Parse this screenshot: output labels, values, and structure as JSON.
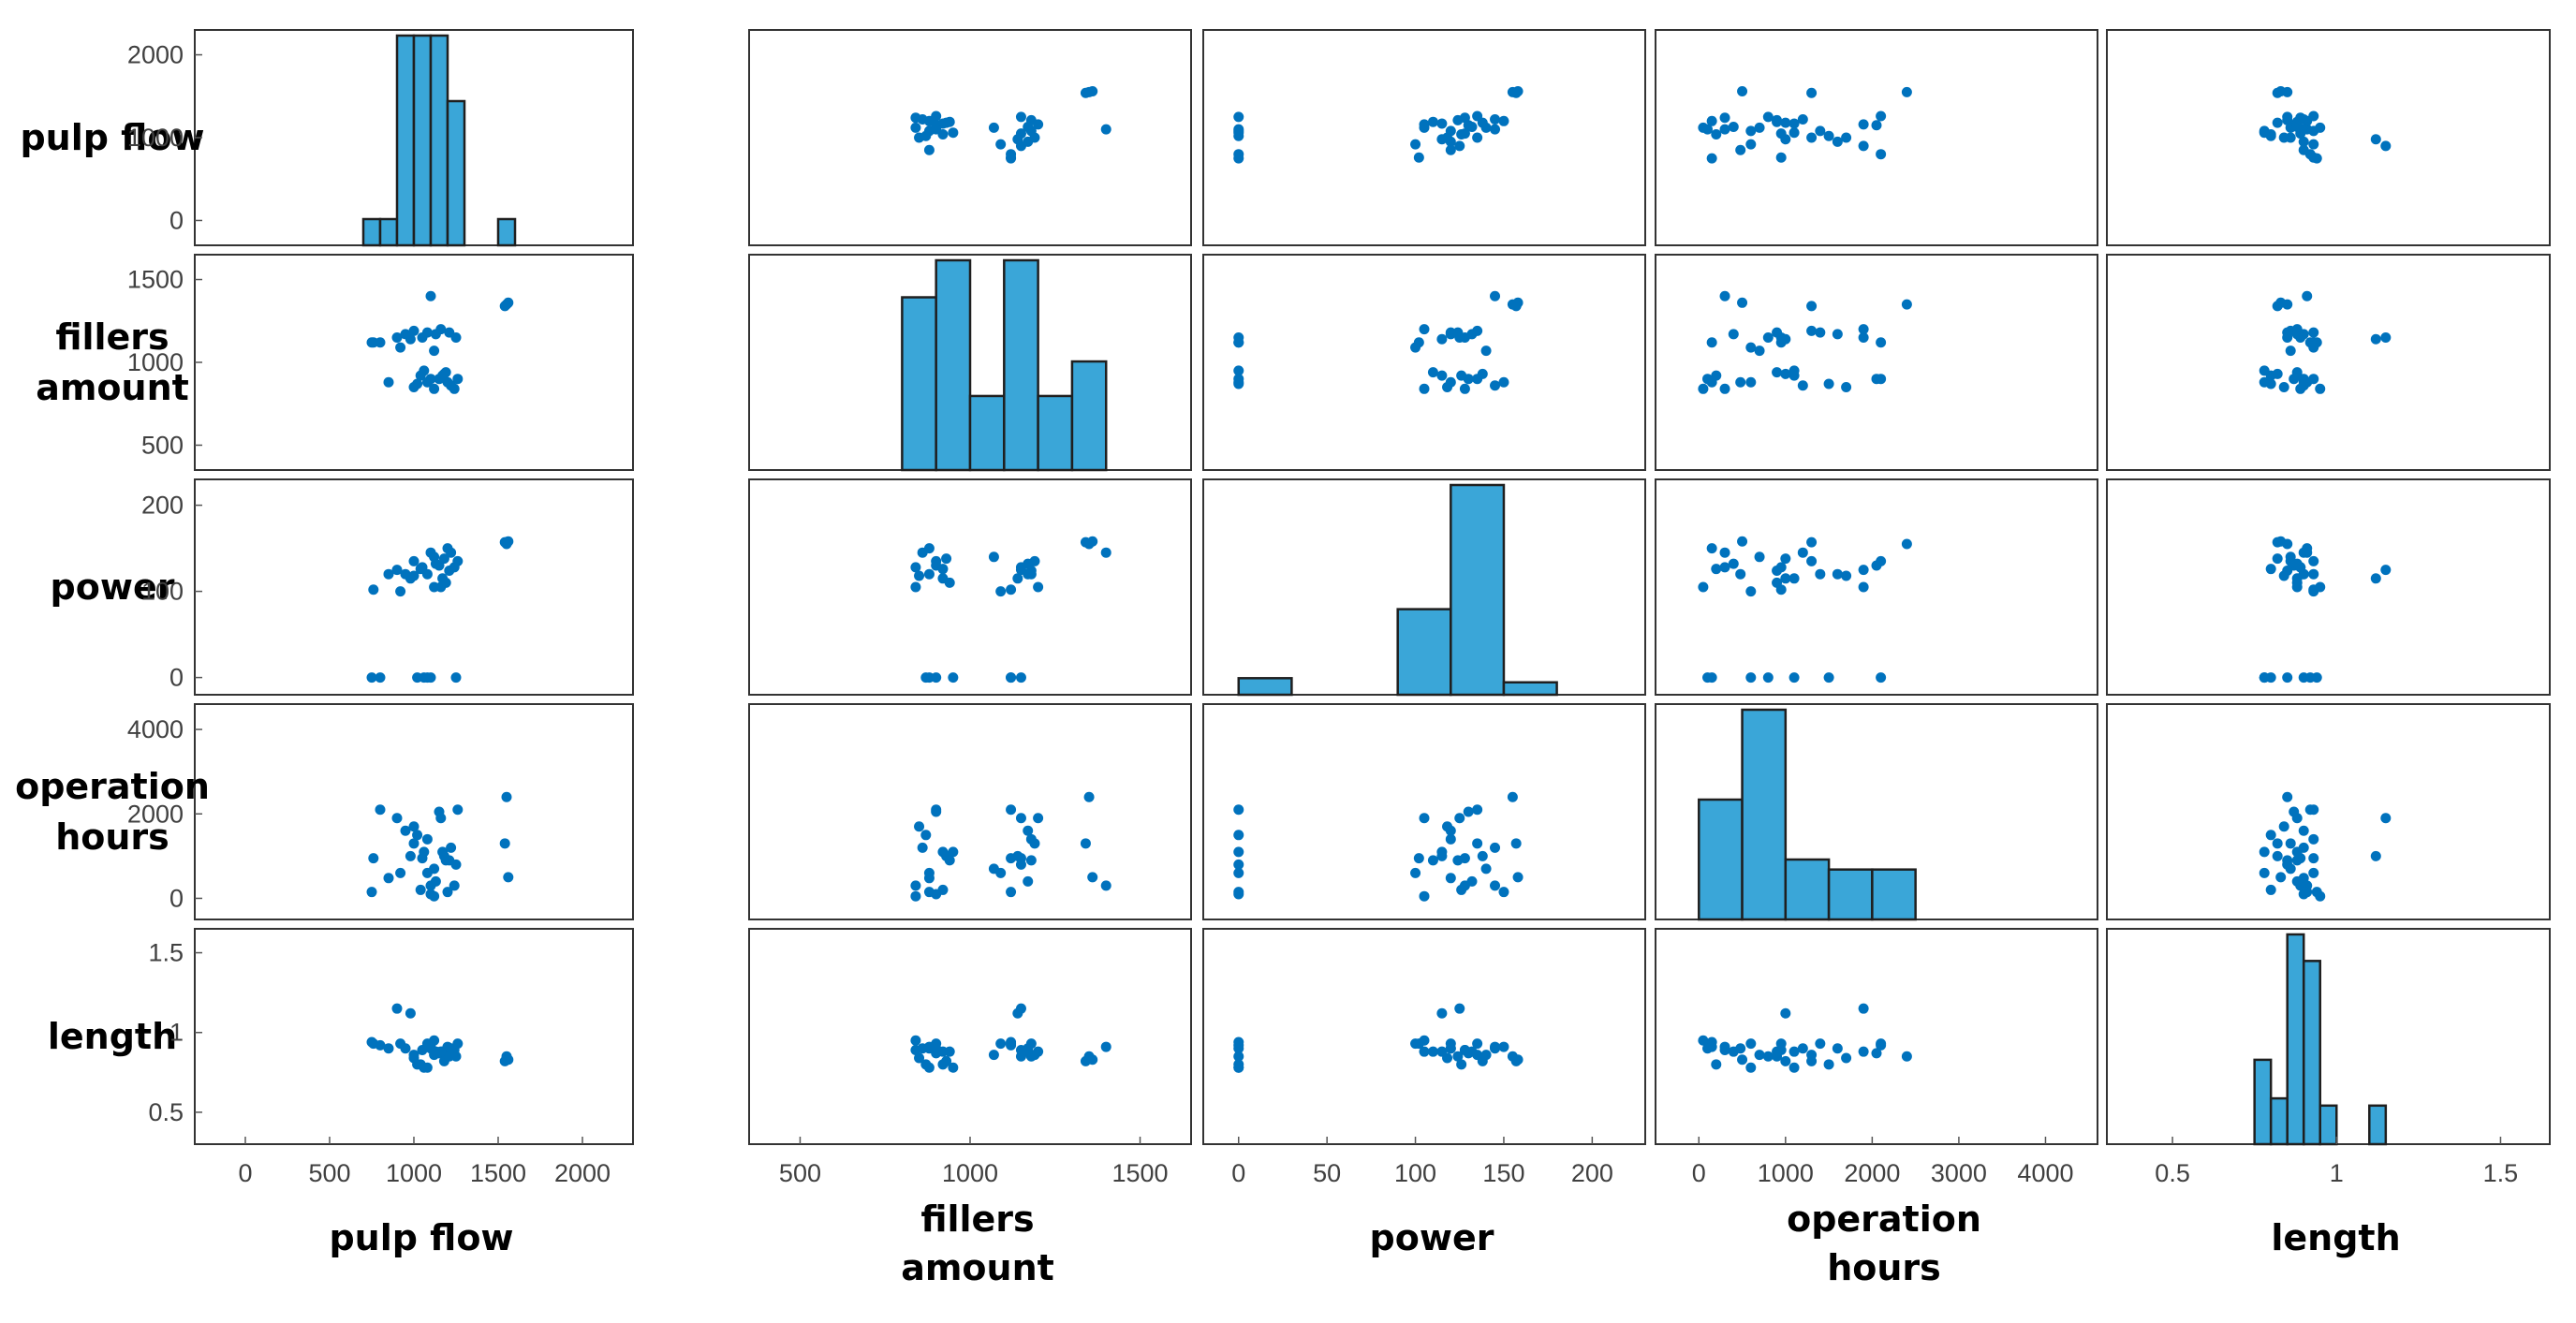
{
  "chart_data": {
    "type": "scatter",
    "subtype": "scatter-matrix",
    "title": "",
    "colors": {
      "marker": "#0072BD",
      "bar": "#3AA6D8",
      "bar_edge": "#1f1f1f",
      "frame": "#333333"
    },
    "variables": [
      {
        "key": "pulp_flow",
        "label": [
          "pulp flow"
        ],
        "range": [
          -300,
          2300
        ],
        "hist_range": [
          -300,
          2300
        ],
        "xticks": [
          0,
          500,
          1000,
          1500,
          2000
        ],
        "xtick_labels": [
          "0",
          "500",
          "1000",
          "1500",
          "2000"
        ],
        "yticks": [
          0,
          1000,
          2000
        ],
        "ytick_labels": [
          "0",
          "1000",
          "2000"
        ]
      },
      {
        "key": "fillers_amount",
        "label": [
          "fillers",
          "amount"
        ],
        "range": [
          350,
          1650
        ],
        "hist_range": [
          350,
          1650
        ],
        "xticks": [
          500,
          1000,
          1500
        ],
        "xtick_labels": [
          "500",
          "1000",
          "1500"
        ],
        "yticks": [
          500,
          1000,
          1500
        ],
        "ytick_labels": [
          "500",
          "1000",
          "1500"
        ]
      },
      {
        "key": "power",
        "label": [
          "power"
        ],
        "range": [
          -20,
          230
        ],
        "hist_range": [
          -20,
          230
        ],
        "xticks": [
          0,
          50,
          100,
          150,
          200
        ],
        "xtick_labels": [
          "0",
          "50",
          "100",
          "150",
          "200"
        ],
        "yticks": [
          0,
          100,
          200
        ],
        "ytick_labels": [
          "0",
          "100",
          "200"
        ]
      },
      {
        "key": "operation_hours",
        "label": [
          "operation",
          "hours"
        ],
        "range": [
          -500,
          4600
        ],
        "hist_range": [
          -500,
          4600
        ],
        "xticks": [
          0,
          1000,
          2000,
          3000,
          4000
        ],
        "xtick_labels": [
          "0",
          "1000",
          "2000",
          "3000",
          "4000"
        ],
        "yticks": [
          0,
          2000,
          4000
        ],
        "ytick_labels": [
          "0",
          "2000",
          "4000"
        ]
      },
      {
        "key": "length",
        "label": [
          "length"
        ],
        "range": [
          0.3,
          1.65
        ],
        "hist_range": [
          0.3,
          1.65
        ],
        "xticks": [
          0.5,
          1,
          1.5
        ],
        "xtick_labels": [
          "0.5",
          "1",
          "1.5"
        ],
        "yticks": [
          0.5,
          1,
          1.5
        ],
        "ytick_labels": [
          "0.5",
          "1",
          "1.5"
        ]
      }
    ],
    "histograms": [
      {
        "variable": "pulp_flow",
        "bins": [
          [
            700,
            800,
            1
          ],
          [
            800,
            900,
            1
          ],
          [
            900,
            1000,
            8
          ],
          [
            1000,
            1100,
            8
          ],
          [
            1100,
            1200,
            8
          ],
          [
            1200,
            1300,
            5.5
          ],
          [
            1500,
            1600,
            1
          ]
        ]
      },
      {
        "variable": "fillers_amount",
        "bins": [
          [
            800,
            900,
            7
          ],
          [
            900,
            1000,
            8.5
          ],
          [
            1000,
            1100,
            3
          ],
          [
            1100,
            1200,
            8.5
          ],
          [
            1200,
            1300,
            3
          ],
          [
            1300,
            1400,
            4.4
          ]
        ]
      },
      {
        "variable": "power",
        "bins": [
          [
            0,
            30,
            1.2
          ],
          [
            90,
            120,
            6.2
          ],
          [
            120,
            150,
            15.2
          ],
          [
            150,
            180,
            0.9
          ]
        ]
      },
      {
        "variable": "operation_hours",
        "bins": [
          [
            0,
            500,
            12
          ],
          [
            500,
            1000,
            21
          ],
          [
            1000,
            1500,
            6
          ],
          [
            1500,
            2000,
            5
          ],
          [
            2000,
            2500,
            5
          ]
        ]
      },
      {
        "variable": "length",
        "bins": [
          [
            0.75,
            0.8,
            3.5
          ],
          [
            0.8,
            0.85,
            1.9
          ],
          [
            0.85,
            0.9,
            8.7
          ],
          [
            0.9,
            0.95,
            7.6
          ],
          [
            0.95,
            1.0,
            1.6
          ],
          [
            1.1,
            1.15,
            1.6
          ]
        ]
      }
    ],
    "observations": [
      [
        750,
        1120,
        0,
        150,
        0.94
      ],
      [
        800,
        1120,
        0,
        2100,
        0.92
      ],
      [
        760,
        1120,
        102,
        950,
        0.93
      ],
      [
        850,
        880,
        120,
        480,
        0.9
      ],
      [
        900,
        1150,
        125,
        1900,
        1.15
      ],
      [
        950,
        1170,
        120,
        1600,
        0.9
      ],
      [
        1000,
        1190,
        135,
        1300,
        0.86
      ],
      [
        1050,
        1150,
        128,
        950,
        0.89
      ],
      [
        1080,
        1180,
        120,
        1400,
        0.93
      ],
      [
        1100,
        1400,
        145,
        300,
        0.91
      ],
      [
        1120,
        1070,
        140,
        700,
        0.86
      ],
      [
        1150,
        900,
        130,
        2050,
        0.87
      ],
      [
        1170,
        920,
        115,
        1100,
        0.88
      ],
      [
        1190,
        940,
        110,
        900,
        0.88
      ],
      [
        1200,
        880,
        150,
        150,
        0.91
      ],
      [
        1220,
        860,
        145,
        1200,
        0.9
      ],
      [
        1240,
        840,
        128,
        300,
        0.89
      ],
      [
        1260,
        900,
        135,
        2100,
        0.93
      ],
      [
        1000,
        850,
        118,
        1700,
        0.84
      ],
      [
        1020,
        870,
        0,
        1500,
        0.8
      ],
      [
        1040,
        920,
        126,
        200,
        0.8
      ],
      [
        1060,
        950,
        0,
        1100,
        0.78
      ],
      [
        1080,
        880,
        0,
        600,
        0.78
      ],
      [
        1100,
        900,
        0,
        100,
        0.9
      ],
      [
        1120,
        840,
        105,
        50,
        0.95
      ],
      [
        1180,
        930,
        138,
        1000,
        0.82
      ],
      [
        1210,
        1180,
        124,
        900,
        0.85
      ],
      [
        1250,
        1150,
        0,
        800,
        0.85
      ],
      [
        1550,
        1350,
        155,
        2400,
        0.85
      ],
      [
        1560,
        1360,
        158,
        500,
        0.83
      ],
      [
        1540,
        1340,
        157,
        1300,
        0.82
      ],
      [
        980,
        1140,
        115,
        1000,
        1.12
      ],
      [
        1130,
        1170,
        132,
        400,
        0.88
      ],
      [
        1160,
        1200,
        105,
        1900,
        0.88
      ],
      [
        920,
        1090,
        100,
        600,
        0.93
      ]
    ]
  }
}
